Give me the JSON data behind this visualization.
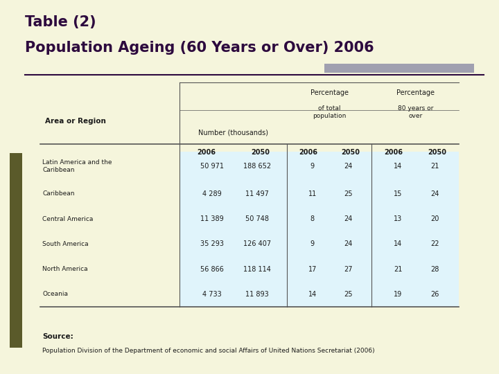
{
  "title_line1": "Table (2)",
  "title_line2": "Population Ageing (60 Years or Over) 2006",
  "bg_color": "#f5f5dc",
  "title_color": "#2d0a3e",
  "header_bg": "#add8e6",
  "row_bg_light": "#e0f4fb",
  "row_bg_white": "#f5f5dc",
  "gray_rect_color": "#a0a0b0",
  "left_accent_color": "#5a5a2a",
  "col_headers": [
    "Area or Region",
    "Number (thousands)",
    "",
    "Percentage\nof total\npopulation",
    "",
    "Percentage\n80 years or\nover",
    ""
  ],
  "sub_headers": [
    "",
    "2006",
    "2050",
    "2006",
    "2050",
    "2006",
    "2050"
  ],
  "rows": [
    [
      "Latin America and the\nCaribbean",
      "50 971",
      "188 652",
      "9",
      "24",
      "14",
      "21"
    ],
    [
      "Caribbean",
      "4 289",
      "11 497",
      "11",
      "25",
      "15",
      "24"
    ],
    [
      "Central America",
      "11 389",
      "50 748",
      "8",
      "24",
      "13",
      "20"
    ],
    [
      "South America",
      "35 293",
      "126 407",
      "9",
      "24",
      "14",
      "22"
    ],
    [
      "North America",
      "56 866",
      "118 114",
      "17",
      "27",
      "21",
      "28"
    ],
    [
      "Oceania",
      "4 733",
      "11 893",
      "14",
      "25",
      "19",
      "26"
    ]
  ],
  "source_label": "Source:",
  "source_text": "Population Division of the Department of economic and social Affairs of United Nations Secretariat (2006)"
}
